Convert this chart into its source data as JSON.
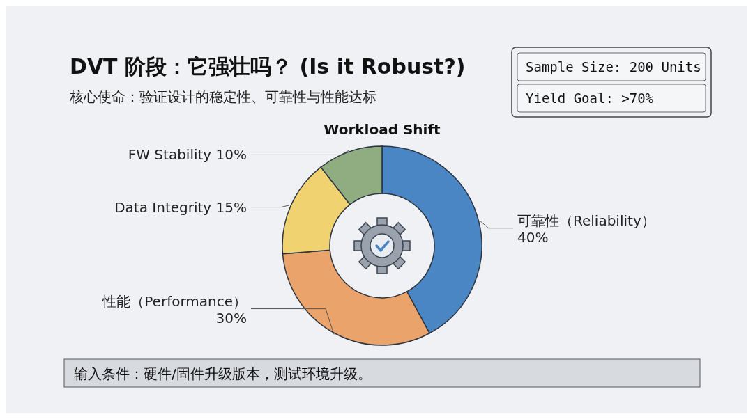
{
  "chart_data": {
    "type": "donut",
    "title": "DVT 阶段：它强壮吗？ (Is it Robust?)",
    "subtitle": "核心使命：验证设计的稳定性、可靠性与性能达标",
    "xlabel": "Workload Shift",
    "categories": [
      "可靠性（Reliability）",
      "性能（Performance）",
      "Data Integrity",
      "FW Stability"
    ],
    "values": [
      40,
      30,
      15,
      10
    ],
    "value_labels": [
      "40%",
      "30%",
      "15%",
      "10%"
    ],
    "colors": [
      "#4b86c4",
      "#e9a36b",
      "#f0d270",
      "#8fad80"
    ],
    "annotations": [
      "Sample Size: 200 Units",
      "Yield Goal: >70%",
      "输入条件：硬件/固件升级版本，测试环境升级。"
    ]
  }
}
